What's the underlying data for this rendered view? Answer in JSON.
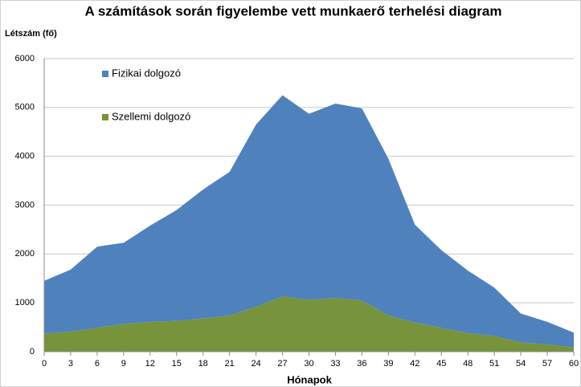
{
  "chart_data": {
    "type": "area",
    "stacked": true,
    "title": "A számítások során figyelembe vett munkaerő terhelési diagram",
    "y_label": "Létszám (fő)",
    "x_label": "Hónapok",
    "x": [
      0,
      3,
      6,
      9,
      12,
      15,
      18,
      21,
      24,
      27,
      30,
      33,
      36,
      39,
      42,
      45,
      48,
      51,
      54,
      57,
      60
    ],
    "series": [
      {
        "name": "Szellemi dolgozó",
        "color": "#77933c",
        "values": [
          370,
          410,
          490,
          570,
          610,
          630,
          680,
          740,
          920,
          1130,
          1060,
          1100,
          1050,
          740,
          600,
          490,
          380,
          320,
          190,
          150,
          90
        ]
      },
      {
        "name": "Fizikai dolgozó",
        "color": "#4f81bd",
        "values": [
          1080,
          1270,
          1660,
          1660,
          1970,
          2270,
          2640,
          2940,
          3730,
          4120,
          3810,
          3980,
          3930,
          3210,
          2000,
          1590,
          1280,
          990,
          590,
          460,
          300
        ]
      }
    ],
    "xlim": [
      0,
      60
    ],
    "xticks": [
      0,
      3,
      6,
      9,
      12,
      15,
      18,
      21,
      24,
      27,
      30,
      33,
      36,
      39,
      42,
      45,
      48,
      51,
      54,
      57,
      60
    ],
    "ylim": [
      0,
      6000
    ],
    "yticks": [
      0,
      1000,
      2000,
      3000,
      4000,
      5000,
      6000
    ],
    "grid": true
  }
}
